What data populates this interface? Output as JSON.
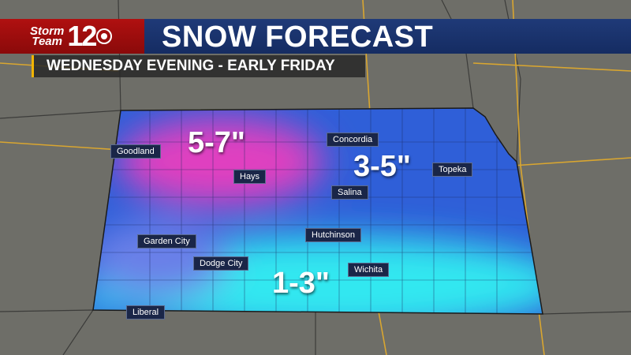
{
  "header": {
    "logo_line1": "Storm",
    "logo_line2": "Team",
    "logo_number": "12",
    "title": "SNOW FORECAST",
    "subtitle": "WEDNESDAY EVENING - EARLY FRIDAY"
  },
  "colors": {
    "heavy": "#e040c0",
    "moderate": "#2f5fd8",
    "light": "#30e8f0",
    "header_red": "#b01010",
    "header_blue": "#1f3a78"
  },
  "cities": [
    "Goodland",
    "Hays",
    "Concordia",
    "Salina",
    "Topeka",
    "Garden City",
    "Hutchinson",
    "Dodge City",
    "Wichita",
    "Liberal"
  ],
  "amounts": {
    "heavy": "5-7\"",
    "moderate": "3-5\"",
    "light": "1-3\""
  }
}
